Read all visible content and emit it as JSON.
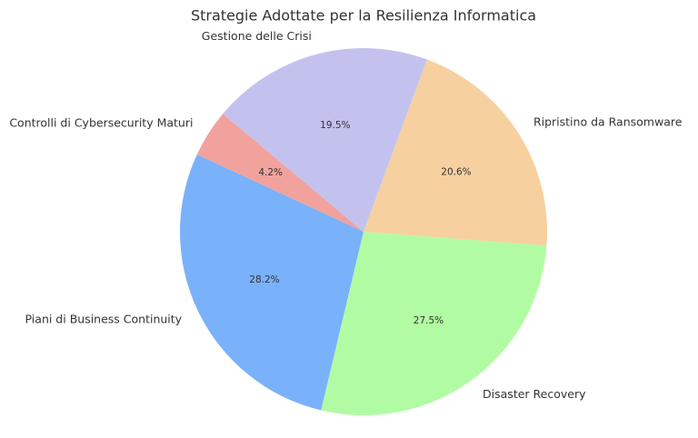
{
  "chart_data": {
    "type": "pie",
    "title": "Strategie Adottate per la Resilienza Informatica",
    "categories": [
      "Controlli di Cybersecurity Maturi",
      "Piani di Business Continuity",
      "Disaster Recovery",
      "Ripristino da Ransomware",
      "Gestione delle Crisi"
    ],
    "values": [
      4.2,
      28.2,
      27.5,
      20.6,
      19.5
    ],
    "value_labels": [
      "4.2%",
      "28.2%",
      "27.5%",
      "20.6%",
      "19.5%"
    ],
    "colors": [
      "#f1a29d",
      "#7ab1fb",
      "#b1fca3",
      "#f7d0a0",
      "#c3c2ee"
    ]
  }
}
